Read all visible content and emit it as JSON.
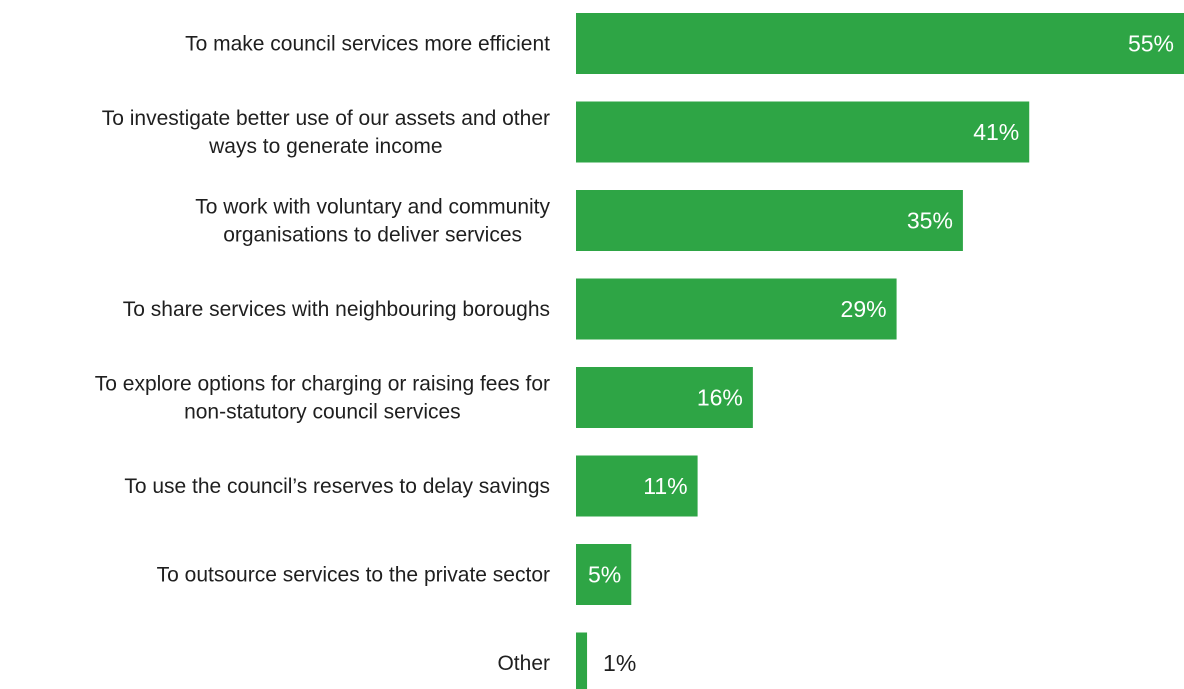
{
  "chart_data": {
    "type": "bar",
    "orientation": "horizontal",
    "categories": [
      "To make council services more efficient",
      "To investigate better use of our assets and other ways to generate income",
      "To work with voluntary and community organisations to deliver services",
      "To share services with neighbouring boroughs",
      "To explore options for charging or raising fees for non-statutory council services",
      "To use the council’s reserves to delay savings",
      "To outsource services to the private sector",
      "Other"
    ],
    "category_lines": [
      [
        "To make council services more efficient"
      ],
      [
        "To investigate better use of our assets and other",
        "ways to generate income"
      ],
      [
        "To work with voluntary and community",
        "organisations to deliver services"
      ],
      [
        "To share services with neighbouring boroughs"
      ],
      [
        "To explore options for charging or raising fees for",
        "non-statutory council services"
      ],
      [
        "To use the council’s reserves to delay savings"
      ],
      [
        "To outsource services to the private sector"
      ],
      [
        "Other"
      ]
    ],
    "values": [
      55,
      41,
      35,
      29,
      16,
      11,
      5,
      1
    ],
    "data_labels": [
      "55%",
      "41%",
      "35%",
      "29%",
      "16%",
      "11%",
      "5%",
      "1%"
    ],
    "unit": "%",
    "xlim": [
      0,
      55
    ],
    "grid": false,
    "legend": "none",
    "bar_color": "#2ea545",
    "label_color_inside": "#ffffff",
    "label_color_outside": "#1f1f1f"
  }
}
